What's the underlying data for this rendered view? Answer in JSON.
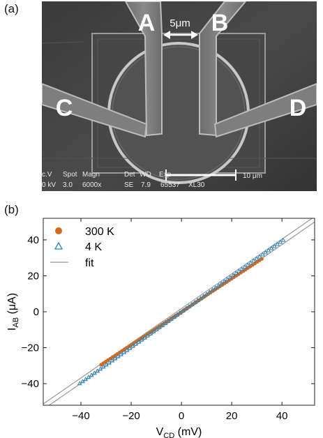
{
  "panels": {
    "a": {
      "label": "(a)"
    },
    "b": {
      "label": "(b)"
    }
  },
  "sem_image": {
    "contact_labels": {
      "A": "A",
      "B": "B",
      "C": "C",
      "D": "D"
    },
    "gap_label": "5μm",
    "info_bar": {
      "headers": [
        "c.V",
        "Spot",
        "Magn",
        "Det",
        "WD",
        "Exp"
      ],
      "values": [
        "0 kV",
        "3.0",
        "6000x",
        "SE",
        "7.9",
        "65537",
        "XL30"
      ],
      "scale_bar_label": "10 μm"
    }
  },
  "chart_data": {
    "type": "scatter",
    "xlabel_main": "V",
    "xlabel_sub": "CD",
    "xlabel_unit": " (mV)",
    "ylabel_main": "I",
    "ylabel_sub": "AB",
    "ylabel_unit": " (μA)",
    "xlim": [
      -55,
      53
    ],
    "ylim": [
      -52,
      52
    ],
    "xticks": [
      -40,
      -20,
      0,
      20,
      40
    ],
    "yticks": [
      -40,
      -20,
      0,
      20,
      40
    ],
    "xtick_labels": [
      "−40",
      "−20",
      "0",
      "20",
      "40"
    ],
    "ytick_labels": [
      "−40",
      "−20",
      "0",
      "20",
      "40"
    ],
    "legend_placement": "top-left",
    "grid": false,
    "series": [
      {
        "name": "300 K",
        "marker": "filled-circle",
        "color": "#d2691e",
        "x_range": [
          -32,
          32
        ],
        "slope": 0.92,
        "intercept": 0,
        "n_points": 70
      },
      {
        "name": "4 K",
        "marker": "open-triangle",
        "color": "#2b83b8",
        "x_range": [
          -40.5,
          40.5
        ],
        "slope": 0.985,
        "intercept": 0,
        "n_points": 70
      },
      {
        "name": "fit",
        "marker": "line",
        "color": "#999999",
        "lines": [
          {
            "slope": 0.965,
            "intercept": 1.8
          },
          {
            "slope": 0.965,
            "intercept": -1.2
          }
        ]
      }
    ]
  }
}
